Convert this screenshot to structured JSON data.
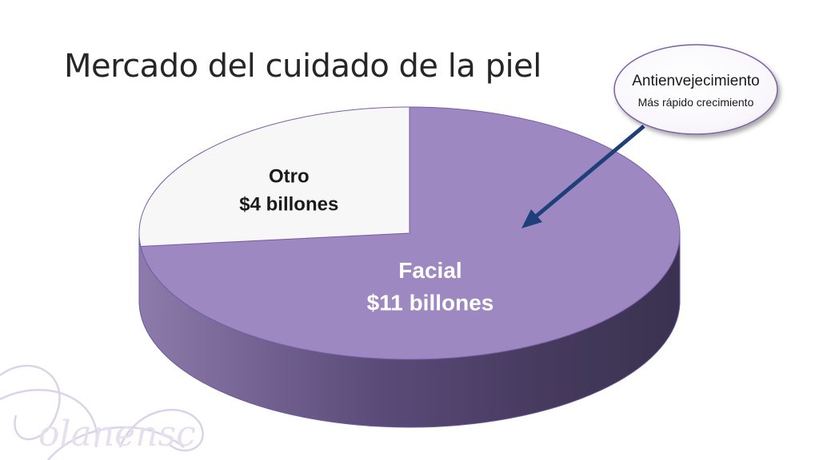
{
  "slide": {
    "title": "Mercado del cuidado de la piel",
    "watermark": "olanensc"
  },
  "callout": {
    "line1": "Antienvejecimiento",
    "line2": "Más rápido crecimiento"
  },
  "colors": {
    "facial_top": "#9e88c1",
    "facial_side": "#5b4a78",
    "otro_top": "#f7f7f7",
    "arrow": "#1f3f7a",
    "label_white": "#ffffff",
    "label_dark": "#1a1a1a"
  },
  "chart_data": {
    "type": "pie",
    "title": "",
    "slices": [
      {
        "label": "Facial",
        "value_label": "$11 billones",
        "value": 11
      },
      {
        "label": "Otro",
        "value_label": "$4 billones",
        "value": 4
      }
    ],
    "legend": "none"
  }
}
